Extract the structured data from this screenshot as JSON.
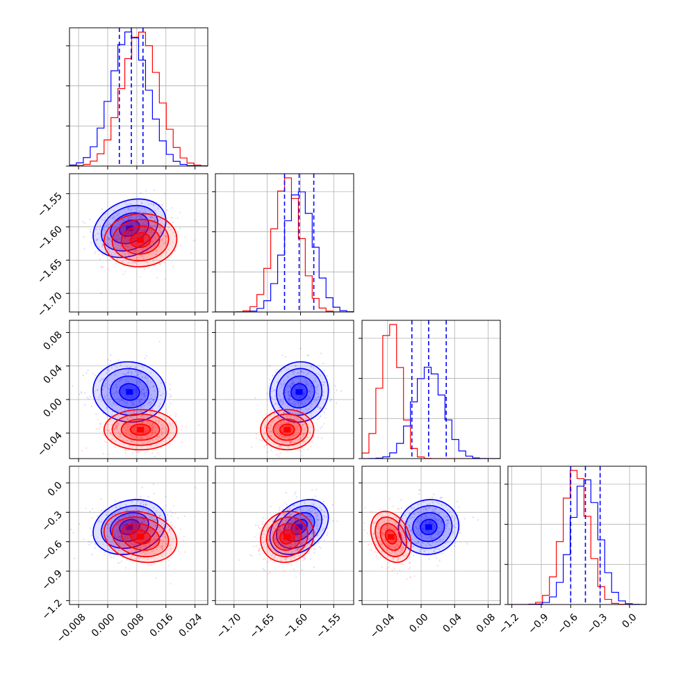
{
  "chart_data": {
    "type": "corner",
    "parameters": 4,
    "grid": true,
    "series": [
      {
        "color": "#0000ff",
        "means": [
          0.006,
          -1.602,
          0.009,
          -0.45
        ],
        "sigmas": [
          0.005,
          0.022,
          0.018,
          0.14
        ],
        "corr": [
          [
            1,
            0.25,
            -0.05,
            0.2
          ],
          [
            0.25,
            1,
            0.05,
            0.35
          ],
          [
            -0.05,
            0.05,
            1,
            0.05
          ],
          [
            0.2,
            0.35,
            0.05,
            1
          ]
        ],
        "quantile_lines": [
          [
            0.0032,
            0.0065,
            0.0097
          ],
          [
            -1.624,
            -1.602,
            -1.58
          ],
          [
            -0.011,
            0.009,
            0.03
          ],
          [
            -0.6,
            -0.45,
            -0.3
          ]
        ]
      },
      {
        "color": "#ff0000",
        "means": [
          0.009,
          -1.62,
          -0.036,
          -0.55
        ],
        "sigmas": [
          0.005,
          0.02,
          0.012,
          0.13
        ],
        "corr": [
          [
            1,
            0.05,
            0.0,
            -0.2
          ],
          [
            0.05,
            1,
            0.0,
            0.1
          ],
          [
            0.0,
            0.0,
            1,
            -0.3
          ],
          [
            -0.2,
            0.1,
            -0.3,
            1
          ]
        ]
      }
    ],
    "axes": [
      {
        "range": [
          -0.0105,
          0.0275
        ],
        "ticks": [
          -0.008,
          0.0,
          0.008,
          0.016,
          0.024
        ],
        "tick_labels": [
          "−0.008",
          "0.000",
          "0.008",
          "0.016",
          "0.024"
        ]
      },
      {
        "range": [
          -1.728,
          -1.52
        ],
        "ticks": [
          -1.7,
          -1.65,
          -1.6,
          -1.55
        ],
        "tick_labels": [
          "−1.70",
          "−1.65",
          "−1.60",
          "−1.55"
        ]
      },
      {
        "range": [
          -0.0705,
          0.0945
        ],
        "ticks": [
          -0.04,
          0.0,
          0.04,
          0.08
        ],
        "tick_labels": [
          "−0.04",
          "0.00",
          "0.04",
          "0.08"
        ]
      },
      {
        "range": [
          -1.24,
          0.17
        ],
        "ticks": [
          -1.2,
          -0.9,
          -0.6,
          -0.3,
          0.0
        ],
        "tick_labels": [
          "−1.2",
          "−0.9",
          "−0.6",
          "−0.3",
          "0.0"
        ]
      }
    ]
  }
}
